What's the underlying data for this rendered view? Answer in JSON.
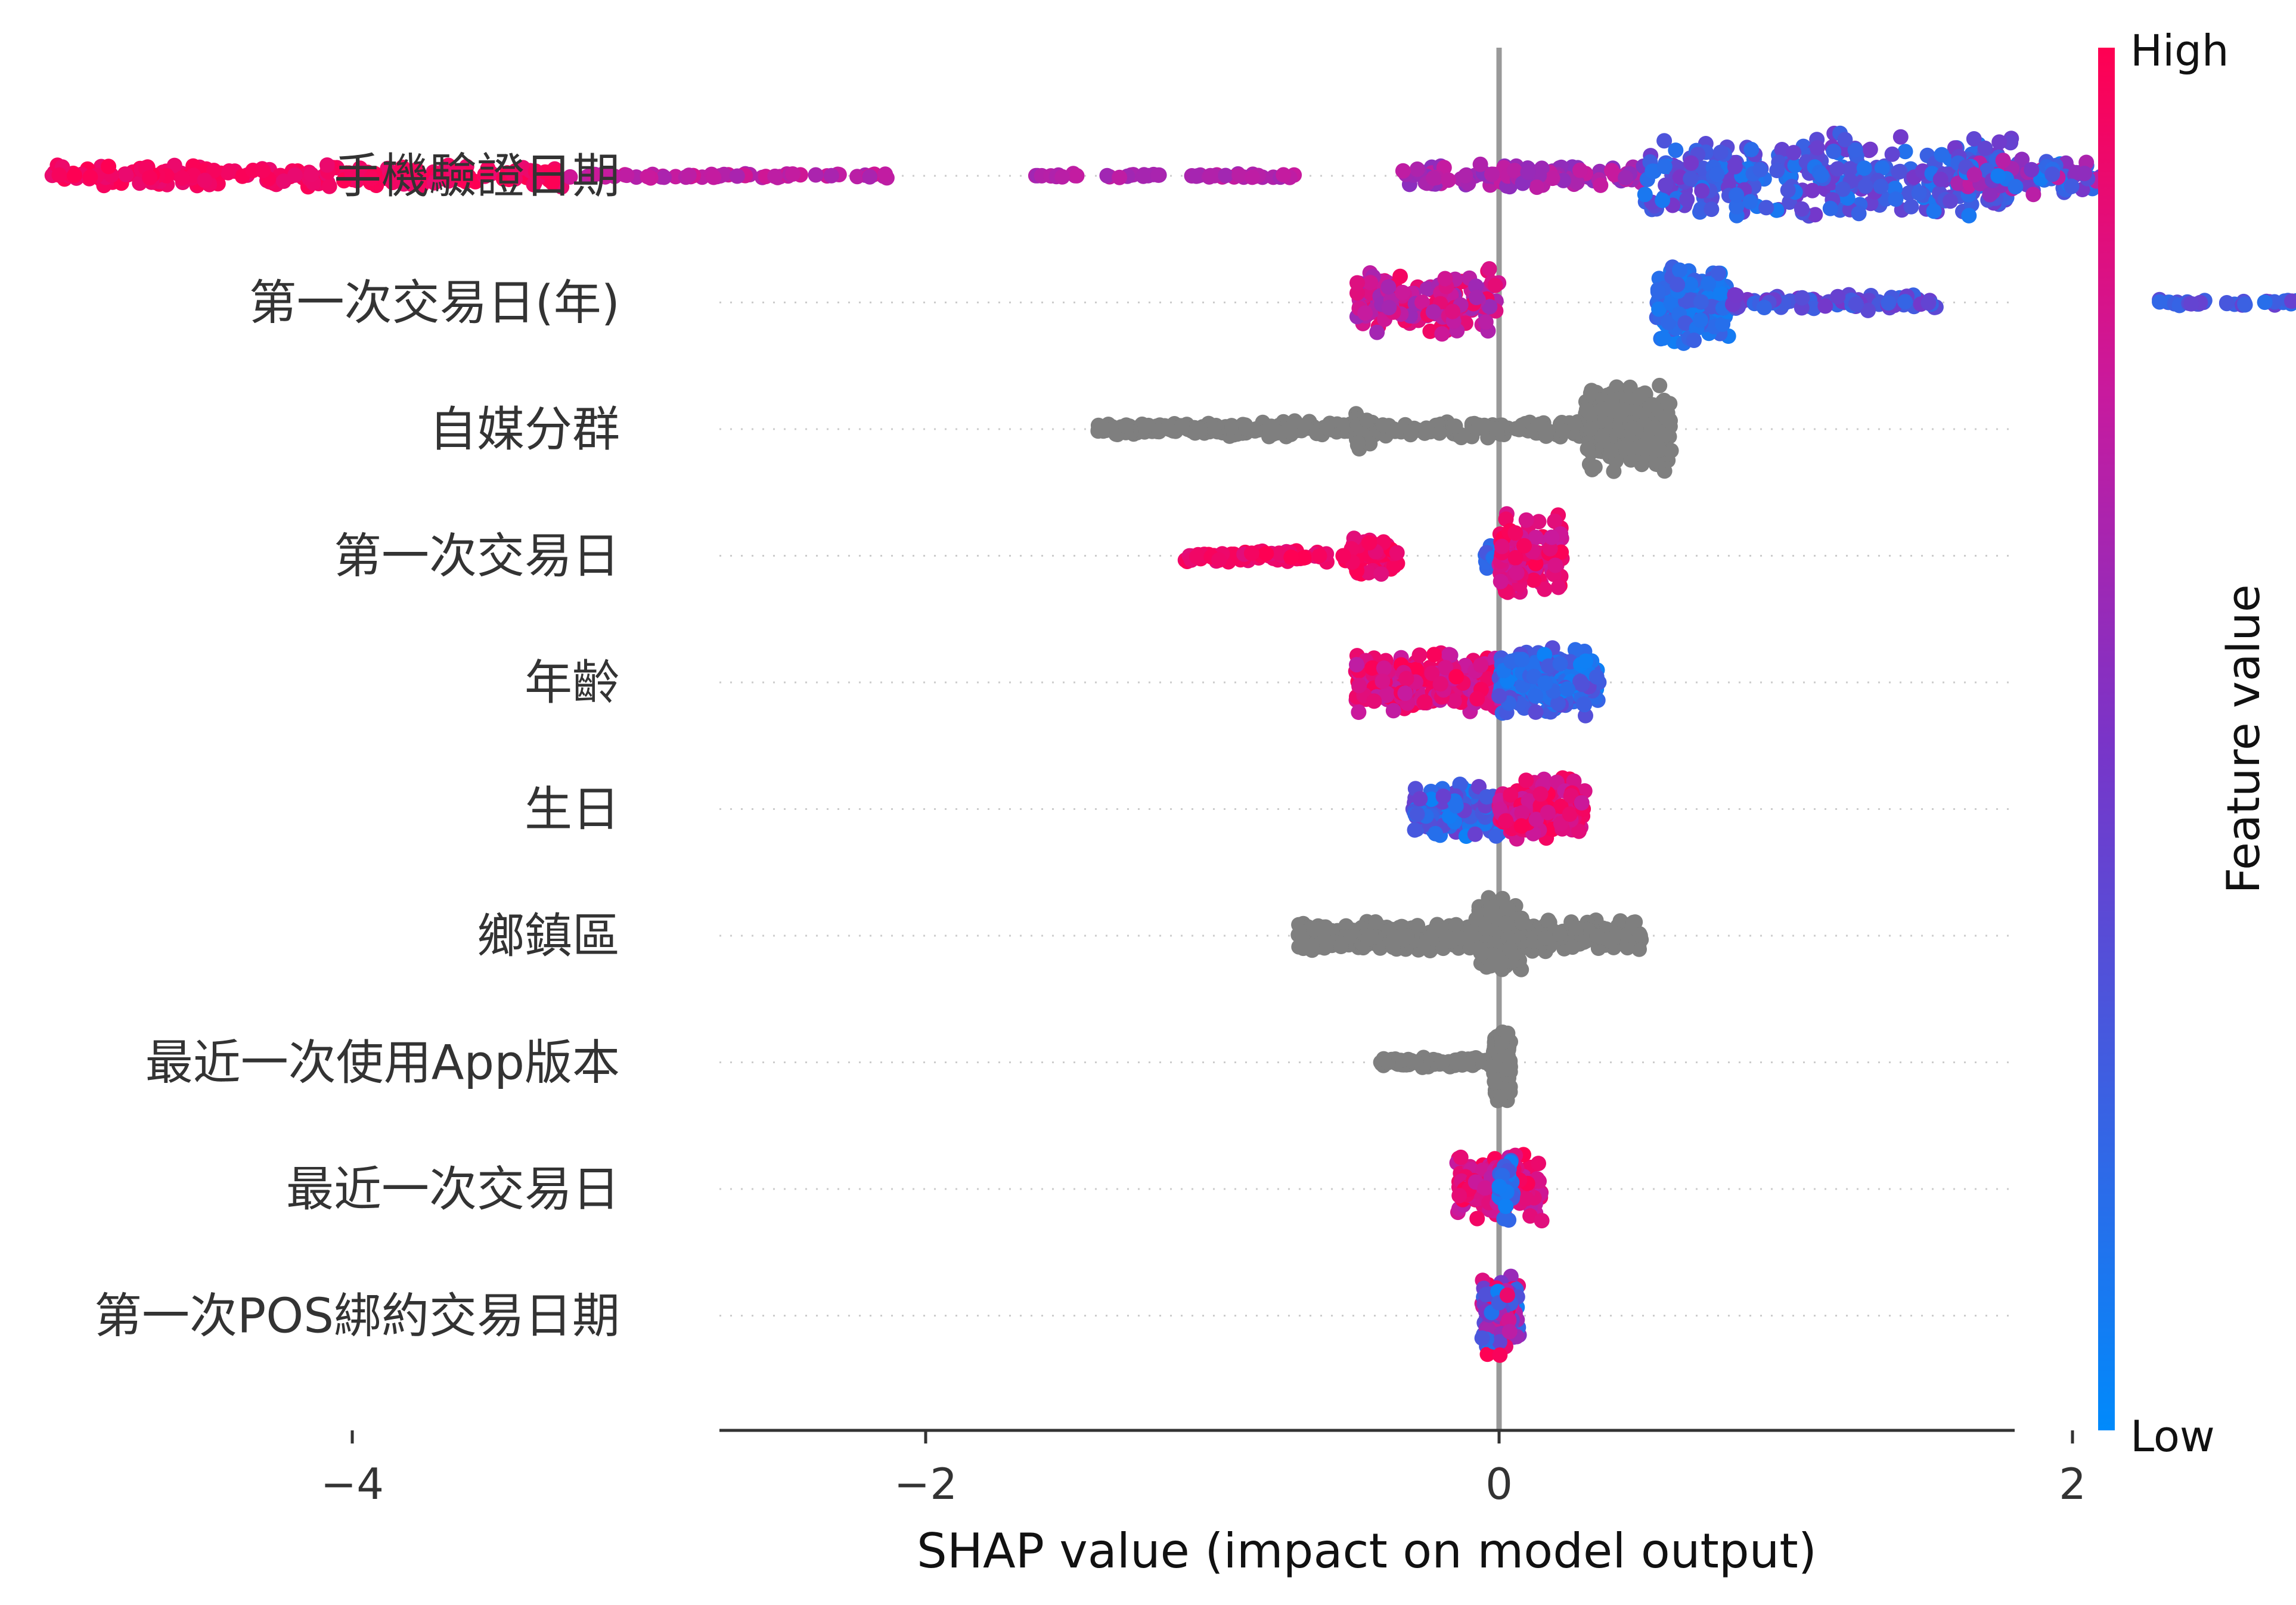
{
  "chart_data": {
    "type": "scatter",
    "xlabel": "SHAP value (impact on model output)",
    "xlim": [
      -5.5,
      3.6
    ],
    "xticks": [
      {
        "value": -4,
        "label": "−4"
      },
      {
        "value": -2,
        "label": "−2"
      },
      {
        "value": 0,
        "label": "0"
      },
      {
        "value": 2,
        "label": "2"
      }
    ],
    "colorbar": {
      "title": "Feature value",
      "high_label": "High",
      "low_label": "Low",
      "high_color": "#ff0052",
      "low_color": "#008afb"
    },
    "no_value_color": "#7f7f7f",
    "features": [
      {
        "name": "手機驗證日期",
        "segments": [
          {
            "from": -5.05,
            "to": -3.25,
            "n": 240,
            "h": 0.26,
            "cmin": 0.9,
            "cmax": 1.0
          },
          {
            "from": -3.25,
            "to": -2.1,
            "n": 60,
            "h": 0.05,
            "cmin": 0.65,
            "cmax": 0.8
          },
          {
            "from": -1.65,
            "to": -0.7,
            "n": 50,
            "h": 0.05,
            "cmin": 0.62,
            "cmax": 0.75
          },
          {
            "from": -0.35,
            "to": 0.5,
            "n": 110,
            "h": 0.28,
            "cmin": 0.55,
            "cmax": 0.75
          },
          {
            "from": 0.5,
            "to": 1.8,
            "n": 340,
            "h": 0.95,
            "cmin": 0.1,
            "cmax": 0.5
          },
          {
            "from": 1.6,
            "to": 2.1,
            "n": 90,
            "h": 0.45,
            "cmin": 0.05,
            "cmax": 0.75
          }
        ]
      },
      {
        "name": "第一次交易日(年)",
        "segments": [
          {
            "from": -0.5,
            "to": 0.0,
            "n": 150,
            "h": 0.75,
            "cmin": 0.6,
            "cmax": 0.95
          },
          {
            "from": 0.55,
            "to": 0.8,
            "n": 180,
            "h": 0.95,
            "cmin": 0.05,
            "cmax": 0.3
          },
          {
            "from": 0.8,
            "to": 1.55,
            "n": 90,
            "h": 0.2,
            "cmin": 0.2,
            "cmax": 0.5
          },
          {
            "from": 2.3,
            "to": 3.15,
            "n": 60,
            "h": 0.07,
            "cmin": 0.15,
            "cmax": 0.45
          }
        ]
      },
      {
        "name": "自媒分群",
        "segments": [
          {
            "from": -1.4,
            "to": -0.95,
            "n": 110,
            "h": 0.14,
            "gray": true
          },
          {
            "from": -0.95,
            "to": 0.3,
            "n": 200,
            "h": 0.2,
            "gray": true
          },
          {
            "from": -0.5,
            "to": -0.45,
            "n": 30,
            "h": 0.5,
            "gray": true
          },
          {
            "from": 0.3,
            "to": 0.6,
            "n": 260,
            "h": 0.95,
            "gray": true
          }
        ]
      },
      {
        "name": "第一次交易日",
        "segments": [
          {
            "from": -1.1,
            "to": -0.6,
            "n": 80,
            "h": 0.14,
            "cmin": 0.85,
            "cmax": 1.0
          },
          {
            "from": -0.55,
            "to": -0.35,
            "n": 60,
            "h": 0.45,
            "cmin": 0.85,
            "cmax": 1.0
          },
          {
            "from": -0.05,
            "to": 0.08,
            "n": 40,
            "h": 0.3,
            "cmin": 0.05,
            "cmax": 0.3
          },
          {
            "from": 0.0,
            "to": 0.22,
            "n": 130,
            "h": 0.9,
            "cmin": 0.75,
            "cmax": 1.0
          }
        ]
      },
      {
        "name": "年齡",
        "segments": [
          {
            "from": -0.5,
            "to": 0.0,
            "n": 230,
            "h": 0.7,
            "cmin": 0.7,
            "cmax": 1.0
          },
          {
            "from": 0.0,
            "to": 0.35,
            "n": 210,
            "h": 0.8,
            "cmin": 0.05,
            "cmax": 0.4
          }
        ]
      },
      {
        "name": "生日",
        "segments": [
          {
            "from": -0.3,
            "to": 0.0,
            "n": 150,
            "h": 0.62,
            "cmin": 0.05,
            "cmax": 0.45
          },
          {
            "from": 0.0,
            "to": 0.3,
            "n": 150,
            "h": 0.72,
            "cmin": 0.75,
            "cmax": 1.0
          }
        ]
      },
      {
        "name": "鄉鎮區",
        "segments": [
          {
            "from": -0.7,
            "to": 0.5,
            "n": 500,
            "h": 0.35,
            "gray": true
          },
          {
            "from": -0.08,
            "to": 0.08,
            "n": 150,
            "h": 0.85,
            "gray": true
          }
        ]
      },
      {
        "name": "最近一次使用App版本",
        "segments": [
          {
            "from": -0.42,
            "to": 0.0,
            "n": 80,
            "h": 0.12,
            "gray": true
          },
          {
            "from": -0.02,
            "to": 0.04,
            "n": 150,
            "h": 0.85,
            "gray": true
          }
        ]
      },
      {
        "name": "最近一次交易日",
        "segments": [
          {
            "from": -0.15,
            "to": 0.15,
            "n": 160,
            "h": 0.8,
            "cmin": 0.7,
            "cmax": 1.0
          },
          {
            "from": 0.0,
            "to": 0.05,
            "n": 30,
            "h": 0.85,
            "cmin": 0.05,
            "cmax": 0.3
          }
        ]
      },
      {
        "name": "第一次POS綁約交易日期",
        "segments": [
          {
            "from": -0.06,
            "to": 0.07,
            "n": 140,
            "h": 0.85,
            "cmin": 0.0,
            "cmax": 1.0
          }
        ]
      }
    ]
  }
}
